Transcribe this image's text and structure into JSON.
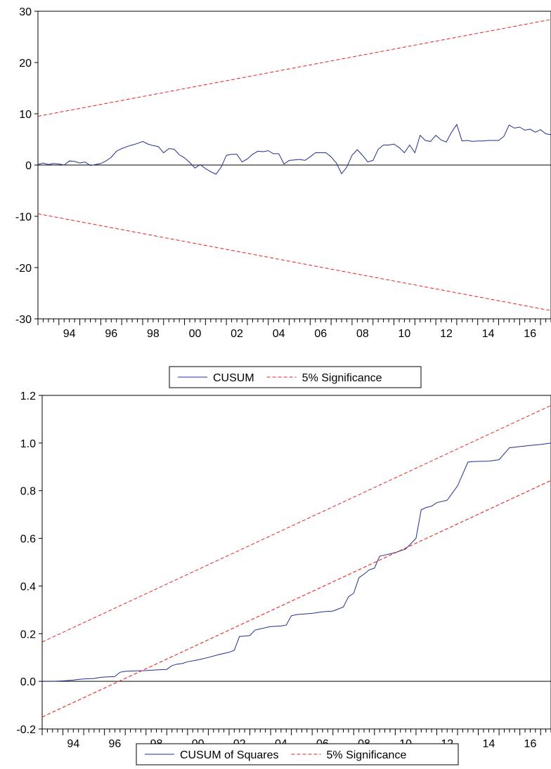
{
  "colors": {
    "series_line": "#1f2f8f",
    "significance_line": "#e8201c",
    "axis": "#000000",
    "background": "#ffffff"
  },
  "chart_data": [
    {
      "type": "line",
      "title": "",
      "xlabel": "",
      "ylabel": "",
      "xlim": [
        1993.0,
        2017.5
      ],
      "ylim": [
        -30,
        30
      ],
      "yticks": [
        30,
        20,
        10,
        0,
        -10,
        -20,
        -30
      ],
      "ytick_labels": [
        "30",
        "20",
        "10",
        "0",
        "-10",
        "-20",
        "-30"
      ],
      "xtick_labels": [
        "94",
        "96",
        "98",
        "00",
        "02",
        "04",
        "06",
        "08",
        "10",
        "12",
        "14",
        "16"
      ],
      "xtick_values": [
        1994,
        1996,
        1998,
        2000,
        2002,
        2004,
        2006,
        2008,
        2010,
        2012,
        2014,
        2016
      ],
      "grid": false,
      "zero_line": true,
      "legend_position": "bottom-center",
      "series": [
        {
          "name": "CUSUM",
          "style": "solid",
          "x": [
            1993.0,
            1993.25,
            1993.5,
            1993.75,
            1994.0,
            1994.25,
            1994.5,
            1994.75,
            1995.0,
            1995.25,
            1995.5,
            1995.75,
            1996.0,
            1996.25,
            1996.5,
            1996.75,
            1997.0,
            1997.25,
            1997.5,
            1997.75,
            1998.0,
            1998.25,
            1998.5,
            1998.75,
            1999.0,
            1999.25,
            1999.5,
            1999.75,
            2000.0,
            2000.25,
            2000.5,
            2000.75,
            2001.0,
            2001.25,
            2001.5,
            2001.75,
            2002.0,
            2002.25,
            2002.5,
            2002.75,
            2003.0,
            2003.25,
            2003.5,
            2003.75,
            2004.0,
            2004.25,
            2004.5,
            2004.75,
            2005.0,
            2005.25,
            2005.5,
            2005.75,
            2006.0,
            2006.25,
            2006.5,
            2006.75,
            2007.0,
            2007.25,
            2007.5,
            2007.75,
            2008.0,
            2008.25,
            2008.5,
            2008.75,
            2009.0,
            2009.25,
            2009.5,
            2009.75,
            2010.0,
            2010.25,
            2010.5,
            2010.75,
            2011.0,
            2011.25,
            2011.5,
            2011.75,
            2012.0,
            2012.25,
            2012.5,
            2012.75,
            2013.0,
            2013.25,
            2013.5,
            2013.75,
            2014.0,
            2014.25,
            2014.5,
            2014.75,
            2015.0,
            2015.25,
            2015.5,
            2015.75,
            2016.0,
            2016.25,
            2016.5,
            2016.75,
            2017.0,
            2017.25,
            2017.5
          ],
          "values": [
            0.1,
            0.4,
            0.1,
            0.3,
            0.2,
            0.0,
            0.8,
            0.7,
            0.4,
            0.6,
            -0.1,
            0.1,
            0.3,
            0.8,
            1.5,
            2.7,
            3.2,
            3.6,
            3.9,
            4.2,
            4.6,
            4.1,
            3.8,
            3.6,
            2.4,
            3.2,
            3.1,
            2.0,
            1.4,
            0.5,
            -0.6,
            0.1,
            -0.7,
            -1.3,
            -1.8,
            -0.4,
            1.9,
            2.1,
            2.1,
            0.6,
            1.2,
            2.1,
            2.7,
            2.6,
            2.8,
            2.2,
            2.2,
            0.2,
            0.9,
            1.0,
            1.1,
            0.9,
            1.6,
            2.4,
            2.4,
            2.4,
            1.6,
            0.4,
            -1.7,
            -0.4,
            1.9,
            3.0,
            1.9,
            0.6,
            0.9,
            3.1,
            3.9,
            3.9,
            4.1,
            3.4,
            2.4,
            3.9,
            2.4,
            5.8,
            4.8,
            4.6,
            5.8,
            4.9,
            4.5,
            6.4,
            7.9,
            4.7,
            4.8,
            4.6,
            4.7,
            4.7,
            4.8,
            4.8,
            4.8,
            5.6,
            7.8,
            7.2,
            7.4,
            6.8,
            7.0,
            6.4,
            6.9,
            6.1,
            5.9
          ]
        },
        {
          "name": "5% Significance",
          "style": "dashed",
          "x": [
            1993.0,
            2017.5
          ],
          "values": [
            9.5,
            28.4
          ]
        },
        {
          "name": "",
          "style": "dashed",
          "x": [
            1993.0,
            2017.5
          ],
          "values": [
            -9.5,
            -28.4
          ]
        }
      ]
    },
    {
      "type": "line",
      "title": "",
      "xlabel": "",
      "ylabel": "",
      "xlim": [
        1993.0,
        2017.5
      ],
      "ylim": [
        -0.2,
        1.2
      ],
      "yticks": [
        1.2,
        1.0,
        0.8,
        0.6,
        0.4,
        0.2,
        0.0,
        -0.2
      ],
      "ytick_labels": [
        "1.2",
        "1.0",
        "0.8",
        "0.6",
        "0.4",
        "0.2",
        "0.0",
        "-0.2"
      ],
      "xtick_labels": [
        "94",
        "96",
        "98",
        "00",
        "02",
        "04",
        "06",
        "08",
        "10",
        "12",
        "14",
        "16"
      ],
      "xtick_values": [
        1994,
        1996,
        1998,
        2000,
        2002,
        2004,
        2006,
        2008,
        2010,
        2012,
        2014,
        2016
      ],
      "grid": false,
      "zero_line": true,
      "legend_position": "bottom-center",
      "series": [
        {
          "name": "CUSUM of Squares",
          "style": "solid",
          "x": [
            1993.0,
            1993.5,
            1994.0,
            1994.5,
            1994.75,
            1995.0,
            1995.5,
            1995.75,
            1996.0,
            1996.5,
            1996.75,
            1997.0,
            1997.5,
            1998.0,
            1998.5,
            1999.0,
            1999.25,
            1999.5,
            1999.75,
            2000.0,
            2000.5,
            2001.0,
            2001.5,
            2002.0,
            2002.25,
            2002.5,
            2002.75,
            2003.0,
            2003.25,
            2003.5,
            2003.75,
            2004.0,
            2004.5,
            2004.75,
            2005.0,
            2005.25,
            2005.5,
            2006.0,
            2006.5,
            2007.0,
            2007.5,
            2007.75,
            2008.0,
            2008.25,
            2008.5,
            2008.75,
            2009.0,
            2009.25,
            2009.5,
            2009.75,
            2010.0,
            2010.5,
            2011.0,
            2011.25,
            2011.5,
            2011.75,
            2012.0,
            2012.5,
            2013.0,
            2013.5,
            2013.75,
            2014.0,
            2014.5,
            2015.0,
            2015.5,
            2016.0,
            2016.5,
            2017.0,
            2017.5
          ],
          "values": [
            0.0,
            0.0,
            0.002,
            0.005,
            0.008,
            0.01,
            0.012,
            0.016,
            0.018,
            0.02,
            0.038,
            0.042,
            0.044,
            0.045,
            0.048,
            0.05,
            0.066,
            0.072,
            0.075,
            0.082,
            0.09,
            0.1,
            0.112,
            0.122,
            0.13,
            0.188,
            0.19,
            0.192,
            0.215,
            0.22,
            0.225,
            0.23,
            0.232,
            0.236,
            0.275,
            0.28,
            0.282,
            0.285,
            0.292,
            0.295,
            0.312,
            0.355,
            0.37,
            0.435,
            0.45,
            0.468,
            0.475,
            0.525,
            0.53,
            0.535,
            0.54,
            0.555,
            0.6,
            0.72,
            0.73,
            0.735,
            0.75,
            0.76,
            0.82,
            0.92,
            0.922,
            0.923,
            0.924,
            0.93,
            0.98,
            0.985,
            0.99,
            0.994,
            1.0
          ],
          "values_note": ""
        },
        {
          "name": "5% Significance",
          "style": "dashed",
          "x": [
            1993.0,
            2017.5
          ],
          "values": [
            0.165,
            1.158
          ]
        },
        {
          "name": "",
          "style": "dashed",
          "x": [
            1993.0,
            2017.5
          ],
          "values": [
            -0.15,
            0.843
          ]
        }
      ]
    }
  ]
}
